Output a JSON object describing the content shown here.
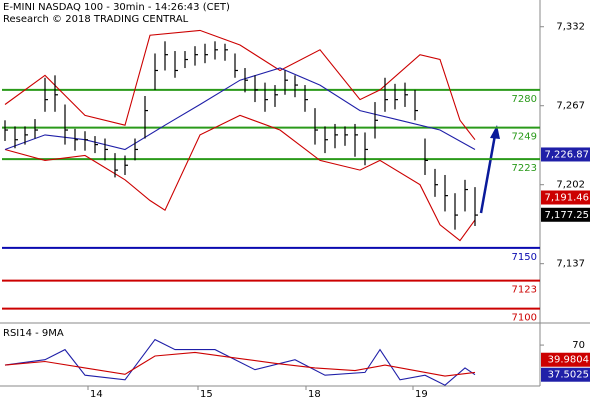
{
  "chart_data": [
    {
      "type": "ohlc",
      "title": "E-MINI NASDAQ 100 - 30min - 14:26:43 (CET)",
      "subtitle": "Research © 2018 TRADING CENTRAL",
      "x": [
        0,
        1,
        2,
        3,
        4,
        5,
        6,
        7,
        8,
        9,
        10,
        11,
        12,
        13,
        14,
        15,
        16,
        17,
        18,
        19,
        20,
        21,
        22,
        23,
        24,
        25,
        26,
        27,
        28,
        29,
        30,
        31,
        32,
        33,
        34,
        35,
        36,
        37,
        38,
        39,
        40,
        41,
        42,
        43,
        44,
        45,
        46,
        47
      ],
      "high": [
        7255,
        7250,
        7250,
        7256,
        7290,
        7292,
        7268,
        7248,
        7246,
        7242,
        7240,
        7228,
        7226,
        7240,
        7275,
        7310,
        7320,
        7312,
        7312,
        7316,
        7318,
        7320,
        7318,
        7310,
        7298,
        7292,
        7286,
        7284,
        7296,
        7292,
        7284,
        7265,
        7250,
        7252,
        7250,
        7252,
        7245,
        7270,
        7290,
        7285,
        7286,
        7280,
        7240,
        7215,
        7210,
        7195,
        7206,
        7200
      ],
      "low": [
        7238,
        7232,
        7235,
        7240,
        7262,
        7262,
        7235,
        7230,
        7230,
        7228,
        7222,
        7208,
        7210,
        7222,
        7240,
        7280,
        7296,
        7290,
        7298,
        7300,
        7302,
        7305,
        7304,
        7290,
        7278,
        7270,
        7262,
        7266,
        7276,
        7274,
        7262,
        7235,
        7228,
        7232,
        7234,
        7225,
        7218,
        7240,
        7262,
        7264,
        7266,
        7255,
        7210,
        7192,
        7180,
        7165,
        7180,
        7168
      ],
      "close": [
        7247,
        7239,
        7243,
        7247,
        7272,
        7276,
        7247,
        7239,
        7239,
        7235,
        7231,
        7214,
        7218,
        7231,
        7263,
        7296,
        7309,
        7296,
        7305,
        7309,
        7309,
        7313,
        7313,
        7296,
        7288,
        7280,
        7272,
        7276,
        7288,
        7284,
        7272,
        7247,
        7239,
        7243,
        7243,
        7243,
        7231,
        7255,
        7272,
        7272,
        7276,
        7263,
        7222,
        7202,
        7193,
        7177,
        7198,
        7177
      ],
      "color": "#000000",
      "overlays": [
        {
          "x": [
            0,
            4,
            8,
            12,
            14.5,
            19.5,
            23.5,
            27.5,
            31.5,
            35.5,
            37.5,
            41.5,
            43.5,
            45.5,
            47
          ],
          "values": [
            7268,
            7292,
            7259,
            7251,
            7325,
            7329,
            7317,
            7296,
            7313,
            7272,
            7280,
            7309,
            7305,
            7255,
            7239
          ],
          "color": "#cc0000"
        },
        {
          "x": [
            0,
            4,
            8,
            12,
            14.5,
            16,
            19.5,
            23.5,
            27.5,
            31.5,
            35.5,
            37.5,
            41.5,
            43.5,
            45.5,
            47
          ],
          "values": [
            7231,
            7222,
            7226,
            7206,
            7189,
            7181,
            7243,
            7259,
            7247,
            7222,
            7214,
            7222,
            7202,
            7169,
            7156,
            7173
          ],
          "color": "#cc0000"
        },
        {
          "x": [
            0,
            4,
            8,
            12,
            16,
            19.5,
            23.5,
            27.5,
            31.5,
            35.5,
            39.5,
            43.5,
            47
          ],
          "values": [
            7231,
            7243,
            7239,
            7231,
            7251,
            7268,
            7288,
            7298,
            7284,
            7263,
            7255,
            7247,
            7231
          ],
          "color": "#1f1fa8"
        }
      ],
      "levels": [
        {
          "value": 7280,
          "color": "#2a9a1a"
        },
        {
          "value": 7249,
          "color": "#2a9a1a"
        },
        {
          "value": 7223,
          "color": "#2a9a1a"
        },
        {
          "value": 7150,
          "color": "#0a0ab0"
        },
        {
          "value": 7123,
          "color": "#cc0000"
        },
        {
          "value": 7100,
          "color": "#cc0000"
        }
      ],
      "price_labels": [
        {
          "value": 7226.87,
          "label": "7,226.87",
          "color": "#1f1fa8"
        },
        {
          "value": 7191.46,
          "label": "7,191.46",
          "color": "#cc0000"
        },
        {
          "value": 7177.25,
          "label": "7,177.25",
          "color": "#000000"
        }
      ],
      "xlim": [
        -0.5,
        53.5
      ],
      "ylim": [
        7089,
        7354
      ],
      "yticks": [
        {
          "value": 7332,
          "label": "7,332"
        },
        {
          "value": 7267,
          "label": "7,267"
        },
        {
          "value": 7202,
          "label": "7,202"
        },
        {
          "value": 7137,
          "label": "7,137"
        }
      ]
    },
    {
      "type": "line",
      "title": "RSI14 - 9MA",
      "series": [
        {
          "x": [
            0,
            4,
            6,
            8,
            12,
            15,
            17,
            21,
            25,
            29,
            32,
            36,
            37.5,
            39.5,
            42,
            44,
            46,
            47
          ],
          "values": [
            48,
            54,
            65,
            37,
            32,
            76,
            65,
            65,
            43,
            54,
            37,
            40,
            65,
            32,
            37,
            26,
            45,
            37.5
          ],
          "color": "#1f1fa8"
        },
        {
          "x": [
            0,
            4,
            8,
            12,
            15,
            19,
            23,
            27,
            31,
            35,
            38,
            41,
            44,
            47
          ],
          "values": [
            48,
            52,
            45,
            38,
            58,
            62,
            56,
            50,
            45,
            42,
            48,
            42,
            36,
            40
          ],
          "color": "#cc0000"
        }
      ],
      "value_boxes": [
        {
          "value": 39.9804,
          "color": "#cc0000"
        },
        {
          "value": 37.5025,
          "color": "#1f1fa8"
        }
      ],
      "xlim": [
        -0.5,
        53.5
      ],
      "xticks": [
        {
          "value": 8.3,
          "label": "14"
        },
        {
          "value": 19.3,
          "label": "15"
        },
        {
          "value": 30.1,
          "label": "18"
        },
        {
          "value": 40.8,
          "label": "19"
        }
      ],
      "ylim": [
        12,
        92
      ],
      "yticks": [
        70
      ]
    }
  ]
}
